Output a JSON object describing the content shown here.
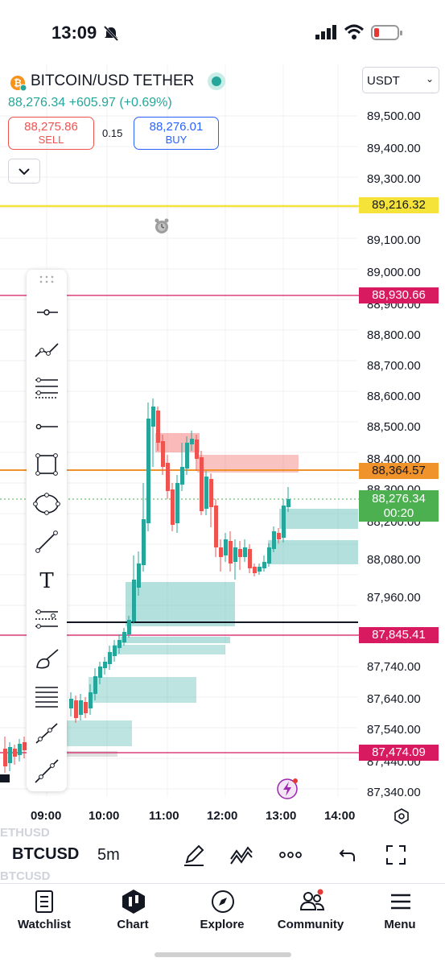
{
  "status_bar": {
    "time": "13:09"
  },
  "header": {
    "symbol_title": "BITCOIN/USD TETHER",
    "price": "88,276.34",
    "change": "+605.97 (+0.69%)",
    "sell_price": "88,275.86",
    "sell_label": "SELL",
    "spread": "0.15",
    "buy_price": "88,276.01",
    "buy_label": "BUY",
    "currency_select": "USDT"
  },
  "price_axis": {
    "ticks": [
      "89,500.00",
      "89,400.00",
      "89,300.00",
      "89,100.00",
      "89,000.00",
      "88,900.00",
      "88,800.00",
      "88,700.00",
      "88,600.00",
      "88,500.00",
      "88,400.00",
      "88,300.00",
      "88,200.00",
      "88,080.00",
      "87,960.00",
      "87,740.00",
      "87,640.00",
      "87,540.00",
      "87,440.00",
      "87,340.00"
    ],
    "labels": {
      "yellow": "89,216.32",
      "red_top": "88,930.66",
      "orange": "88,364.57",
      "current": "88,276.34",
      "countdown": "00:20",
      "red_mid": "87,845.41",
      "red_low": "87,474.09"
    }
  },
  "time_axis": {
    "ticks": [
      "09:00",
      "10:00",
      "11:00",
      "12:00",
      "13:00",
      "14:00"
    ]
  },
  "bottom_toolbar": {
    "symbol": "BTCUSD",
    "interval": "5m",
    "ghost_top": "ETHUSD",
    "ghost_bottom": "BTCUSD"
  },
  "nav": {
    "watchlist": "Watchlist",
    "chart": "Chart",
    "explore": "Explore",
    "community": "Community",
    "menu": "Menu"
  },
  "colors": {
    "up": "#26a69a",
    "down": "#ef5350",
    "yellow_line": "#f5e33a",
    "orange_line": "#f0932b",
    "red_line": "#d81b60",
    "buy_blue": "#2962ff"
  }
}
